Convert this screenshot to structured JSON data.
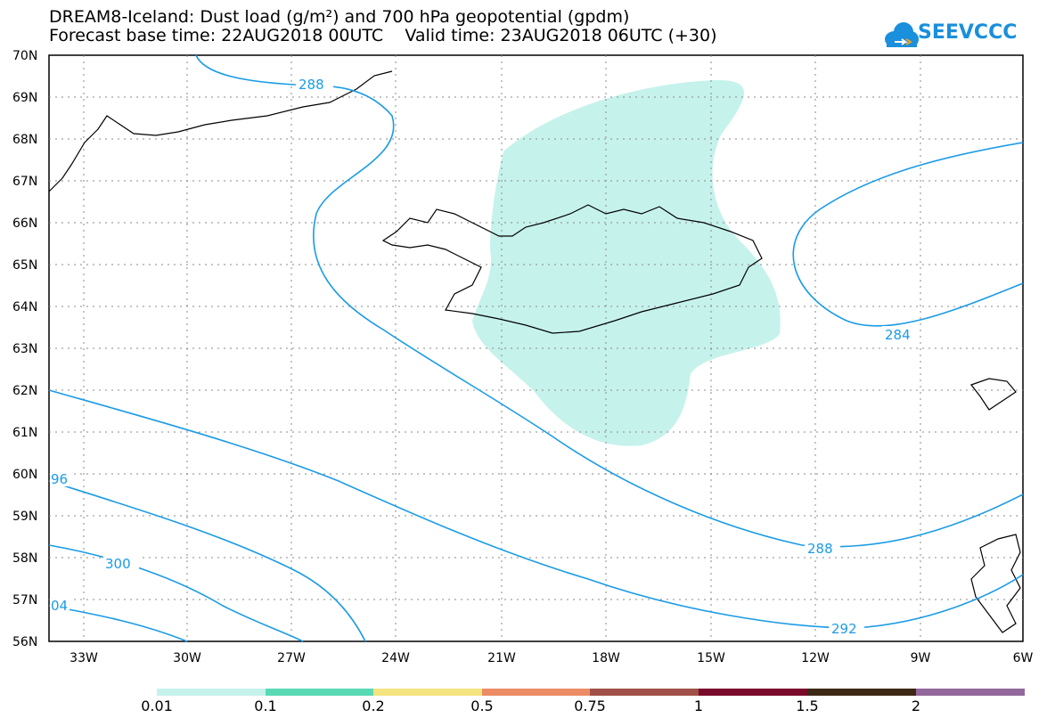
{
  "title": {
    "line1": "DREAM8-Iceland: Dust load (g/m²) and 700 hPa geopotential (gpdm)",
    "line2": "Forecast base time: 22AUG2018 00UTC    Valid time: 23AUG2018 06UTC (+30)"
  },
  "logo": {
    "text": "SEEVCCC",
    "icon": "cloud-icon",
    "color": "#1a8fdc"
  },
  "map": {
    "lat_labels": [
      "70N",
      "69N",
      "68N",
      "67N",
      "66N",
      "65N",
      "64N",
      "63N",
      "62N",
      "61N",
      "60N",
      "59N",
      "58N",
      "57N",
      "56N"
    ],
    "lon_labels": [
      "33W",
      "30W",
      "27W",
      "24W",
      "21W",
      "18W",
      "15W",
      "12W",
      "9W",
      "6W"
    ],
    "contour_labels": [
      "288",
      "284",
      "96",
      "288",
      "300",
      "292",
      "04"
    ],
    "dust_color": "#c6f2ec",
    "contour_color": "#1a9be6"
  },
  "colorbar": {
    "labels": [
      "0.01",
      "0.1",
      "0.2",
      "0.5",
      "0.75",
      "1",
      "1.5",
      "2"
    ],
    "colors": [
      "#c6f2ec",
      "#5ad9b5",
      "#f4e480",
      "#eb8c65",
      "#a05048",
      "#7a0a2c",
      "#3c2814",
      "#93689d"
    ]
  }
}
